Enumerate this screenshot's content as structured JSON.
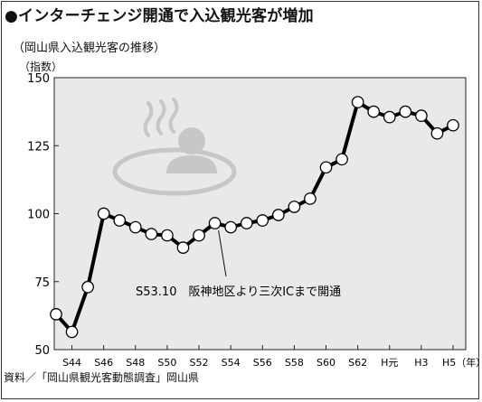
{
  "title": "●インターチェンジ開通で入込観光客が増加",
  "subtitle": "（岡山県入込観光客の推移）",
  "unit_label": "（指数）",
  "source": "資料／「岡山県観光客動態調査」岡山県",
  "icon": "hot-spring-bather-icon",
  "chart_data": {
    "type": "line",
    "title": "●インターチェンジ開通で入込観光客が増加",
    "subtitle": "（岡山県入込観光客の推移）",
    "ylabel": "（指数）",
    "xlabel": "（年）",
    "ylim": [
      50,
      150
    ],
    "yticks": [
      50,
      75,
      100,
      125,
      150
    ],
    "grid": false,
    "x": [
      "S43",
      "S44",
      "S45",
      "S46",
      "S47",
      "S48",
      "S49",
      "S50",
      "S51",
      "S52",
      "S53",
      "S54",
      "S55",
      "S56",
      "S57",
      "S58",
      "S59",
      "S60",
      "S61",
      "S62",
      "S63",
      "H元",
      "H2",
      "H3",
      "H4",
      "H5"
    ],
    "xtick_labels": [
      "S44",
      "S46",
      "S48",
      "S50",
      "S52",
      "S54",
      "S56",
      "S58",
      "S60",
      "S62",
      "H元",
      "H3",
      "H5（年）"
    ],
    "xtick_positions": [
      "S44",
      "S46",
      "S48",
      "S50",
      "S52",
      "S54",
      "S56",
      "S58",
      "S60",
      "S62",
      "H元",
      "H3",
      "H5"
    ],
    "series": [
      {
        "values": [
          63,
          56.5,
          73,
          100,
          97.5,
          95,
          92.5,
          92,
          87.5,
          92,
          96.5,
          95,
          96.5,
          97.5,
          99.5,
          102.5,
          105.5,
          117,
          120,
          141,
          137.5,
          135.5,
          137.5,
          136,
          129.5,
          132.5
        ]
      }
    ],
    "annotation": {
      "text": "S53.10　阪神地区より三次ICまで開通",
      "target": "S53"
    }
  },
  "colors": {
    "plot_bg": "#e9e9e9",
    "line": "#000000",
    "marker_fill": "#ffffff",
    "icon": "#c7c7c7"
  }
}
